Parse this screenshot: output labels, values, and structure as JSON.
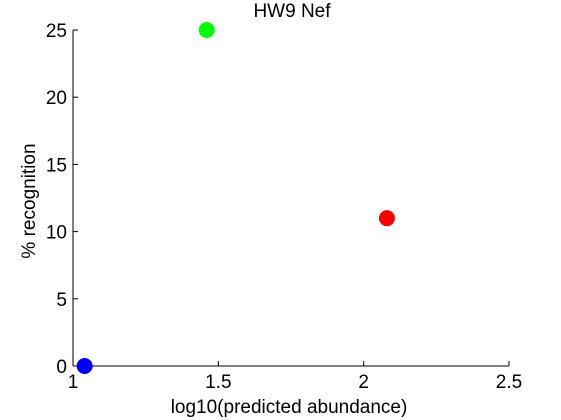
{
  "chart_data": {
    "type": "scatter",
    "title": "HW9 Nef",
    "xlabel": "log10(predicted abundance)",
    "ylabel": "% recognition",
    "xlim": [
      1,
      2.5
    ],
    "ylim": [
      0,
      25
    ],
    "xticks": [
      1,
      1.5,
      2,
      2.5
    ],
    "xtick_labels": [
      "1",
      "1.5",
      "2",
      "2.5"
    ],
    "yticks": [
      0,
      5,
      10,
      15,
      20,
      25
    ],
    "ytick_labels": [
      "0",
      "5",
      "10",
      "15",
      "20",
      "25"
    ],
    "grid": false,
    "points": [
      {
        "x": 1.04,
        "y": 0,
        "color": "#0000ff"
      },
      {
        "x": 1.46,
        "y": 25,
        "color": "#00ff00"
      },
      {
        "x": 2.08,
        "y": 11,
        "color": "#ff0000"
      }
    ]
  }
}
